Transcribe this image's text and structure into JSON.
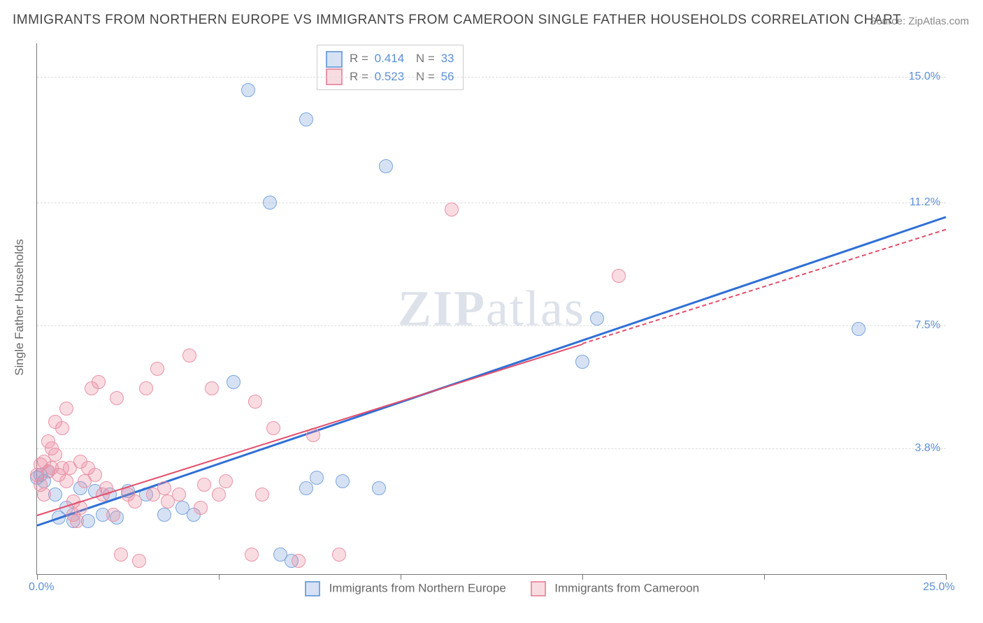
{
  "title": "IMMIGRANTS FROM NORTHERN EUROPE VS IMMIGRANTS FROM CAMEROON SINGLE FATHER HOUSEHOLDS CORRELATION CHART",
  "source_label": "Source: ZipAtlas.com",
  "watermark_a": "ZIP",
  "watermark_b": "atlas",
  "y_axis_label": "Single Father Households",
  "chart": {
    "type": "scatter",
    "xlim": [
      0,
      25
    ],
    "ylim": [
      0,
      16
    ],
    "x_tick_positions": [
      0,
      5,
      10,
      15,
      20,
      25
    ],
    "x_tick_labels": [
      "0.0%",
      "",
      "",
      "",
      "",
      "25.0%"
    ],
    "y_gridlines": [
      3.8,
      7.5,
      11.2,
      15.0
    ],
    "y_tick_labels": [
      "3.8%",
      "7.5%",
      "11.2%",
      "15.0%"
    ],
    "background_color": "#ffffff",
    "grid_color": "#dddddd",
    "axis_color": "#777777",
    "ytick_text_color": "#5b8fd6",
    "point_radius": 10,
    "series": [
      {
        "name": "Immigrants from Northern Europe",
        "fill": "rgba(120,160,220,0.30)",
        "stroke": "#7aa6dd",
        "trend_color": "#2f6fd6",
        "trend_dash": "solid",
        "trend_width": 3,
        "r_value": "0.414",
        "n_value": "33",
        "trend": {
          "x1": 0,
          "y1": 1.5,
          "x2": 25,
          "y2": 10.8
        },
        "points": [
          [
            0.0,
            2.9
          ],
          [
            0.1,
            3.0
          ],
          [
            0.2,
            2.8
          ],
          [
            0.3,
            3.1
          ],
          [
            0.5,
            2.4
          ],
          [
            0.6,
            1.7
          ],
          [
            0.8,
            2.0
          ],
          [
            1.0,
            1.6
          ],
          [
            1.2,
            2.6
          ],
          [
            1.4,
            1.6
          ],
          [
            1.6,
            2.5
          ],
          [
            1.8,
            1.8
          ],
          [
            2.0,
            2.4
          ],
          [
            2.2,
            1.7
          ],
          [
            2.5,
            2.5
          ],
          [
            3.0,
            2.4
          ],
          [
            3.5,
            1.8
          ],
          [
            4.0,
            2.0
          ],
          [
            4.3,
            1.8
          ],
          [
            5.4,
            5.8
          ],
          [
            5.8,
            14.6
          ],
          [
            6.4,
            11.2
          ],
          [
            6.7,
            0.6
          ],
          [
            7.0,
            0.4
          ],
          [
            7.4,
            13.7
          ],
          [
            7.4,
            2.6
          ],
          [
            7.7,
            2.9
          ],
          [
            8.4,
            2.8
          ],
          [
            9.4,
            2.6
          ],
          [
            9.6,
            12.3
          ],
          [
            15.0,
            6.4
          ],
          [
            15.4,
            7.7
          ],
          [
            22.6,
            7.4
          ]
        ]
      },
      {
        "name": "Immigrants from Cameroon",
        "fill": "rgba(235,140,160,0.30)",
        "stroke": "#e993a6",
        "trend_color": "#e34d6b",
        "trend_dash_solid_until_x": 15,
        "trend_dash": "dashed",
        "trend_width": 2,
        "r_value": "0.523",
        "n_value": "56",
        "trend": {
          "x1": 0,
          "y1": 1.8,
          "x2": 25,
          "y2": 10.4
        },
        "points": [
          [
            0.0,
            3.0
          ],
          [
            0.1,
            2.7
          ],
          [
            0.1,
            3.3
          ],
          [
            0.2,
            2.4
          ],
          [
            0.2,
            3.4
          ],
          [
            0.3,
            3.1
          ],
          [
            0.3,
            4.0
          ],
          [
            0.4,
            3.2
          ],
          [
            0.4,
            3.8
          ],
          [
            0.5,
            3.6
          ],
          [
            0.5,
            4.6
          ],
          [
            0.6,
            3.0
          ],
          [
            0.7,
            3.2
          ],
          [
            0.7,
            4.4
          ],
          [
            0.8,
            2.8
          ],
          [
            0.8,
            5.0
          ],
          [
            0.9,
            3.2
          ],
          [
            1.0,
            1.8
          ],
          [
            1.0,
            2.2
          ],
          [
            1.1,
            1.6
          ],
          [
            1.2,
            2.0
          ],
          [
            1.2,
            3.4
          ],
          [
            1.3,
            2.8
          ],
          [
            1.4,
            3.2
          ],
          [
            1.5,
            5.6
          ],
          [
            1.6,
            3.0
          ],
          [
            1.7,
            5.8
          ],
          [
            1.8,
            2.4
          ],
          [
            1.9,
            2.6
          ],
          [
            2.1,
            1.8
          ],
          [
            2.2,
            5.3
          ],
          [
            2.3,
            0.6
          ],
          [
            2.5,
            2.4
          ],
          [
            2.7,
            2.2
          ],
          [
            2.8,
            0.4
          ],
          [
            3.0,
            5.6
          ],
          [
            3.2,
            2.4
          ],
          [
            3.3,
            6.2
          ],
          [
            3.5,
            2.6
          ],
          [
            3.6,
            2.2
          ],
          [
            3.9,
            2.4
          ],
          [
            4.2,
            6.6
          ],
          [
            4.5,
            2.0
          ],
          [
            4.6,
            2.7
          ],
          [
            4.8,
            5.6
          ],
          [
            5.0,
            2.4
          ],
          [
            5.2,
            2.8
          ],
          [
            5.9,
            0.6
          ],
          [
            6.0,
            5.2
          ],
          [
            6.2,
            2.4
          ],
          [
            6.5,
            4.4
          ],
          [
            7.2,
            0.4
          ],
          [
            7.6,
            4.2
          ],
          [
            8.3,
            0.6
          ],
          [
            11.4,
            11.0
          ],
          [
            16.0,
            9.0
          ]
        ]
      }
    ]
  },
  "legend": {
    "stats_label_r": "R =",
    "stats_label_n": "N =",
    "series1_label": "Immigrants from Northern Europe",
    "series2_label": "Immigrants from Cameroon"
  }
}
